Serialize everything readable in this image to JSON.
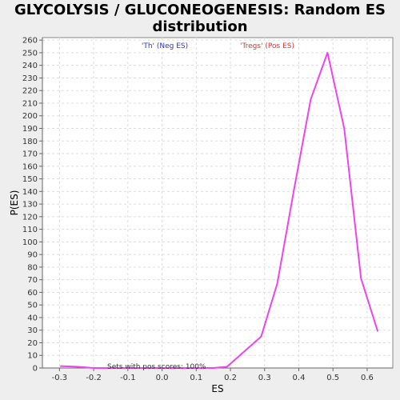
{
  "chart_data": {
    "type": "line",
    "title_line1": "GLYCOLYSIS / GLUCONEOGENESIS: Random ES",
    "title_line2": "distribution",
    "xlabel": "ES",
    "ylabel": "P(ES)",
    "xlim": [
      -0.35,
      0.675
    ],
    "ylim": [
      0,
      262
    ],
    "x_ticks": [
      -0.3,
      -0.2,
      -0.1,
      0.0,
      0.1,
      0.2,
      0.3,
      0.4,
      0.5,
      0.6
    ],
    "x_tick_labels": [
      "-0.3",
      "-0.2",
      "-0.1",
      "0.0",
      "0.1",
      "0.2",
      "0.3",
      "0.4",
      "0.5",
      "0.6"
    ],
    "y_ticks": [
      0,
      10,
      20,
      30,
      40,
      50,
      60,
      70,
      80,
      90,
      100,
      110,
      120,
      130,
      140,
      150,
      160,
      170,
      180,
      190,
      200,
      210,
      220,
      230,
      240,
      250,
      260
    ],
    "y_tick_labels": [
      "0",
      "10",
      "20",
      "30",
      "40",
      "50",
      "60",
      "70",
      "80",
      "90",
      "100",
      "110",
      "120",
      "130",
      "140",
      "150",
      "160",
      "170",
      "180",
      "190",
      "200",
      "210",
      "220",
      "230",
      "240",
      "250",
      "260"
    ],
    "grid": true,
    "legend": [
      {
        "label": "'Th' (Neg ES)",
        "color": "#3333cc"
      },
      {
        "label": "'Tregs' (Pos ES)",
        "color": "#dd3333"
      }
    ],
    "annotation": "Sets with pos scores: 100%",
    "series": [
      {
        "color": "#ee44ee",
        "x": [
          -0.298,
          -0.25,
          -0.2,
          -0.15,
          -0.1,
          -0.05,
          0.0,
          0.05,
          0.1,
          0.15,
          0.19,
          0.29,
          0.337,
          0.385,
          0.435,
          0.484,
          0.533,
          0.582,
          0.631
        ],
        "y": [
          1.5,
          1,
          0,
          0,
          0,
          0,
          0,
          0,
          0,
          0,
          1,
          25,
          67,
          140,
          213,
          250,
          190,
          71,
          29
        ]
      }
    ]
  }
}
